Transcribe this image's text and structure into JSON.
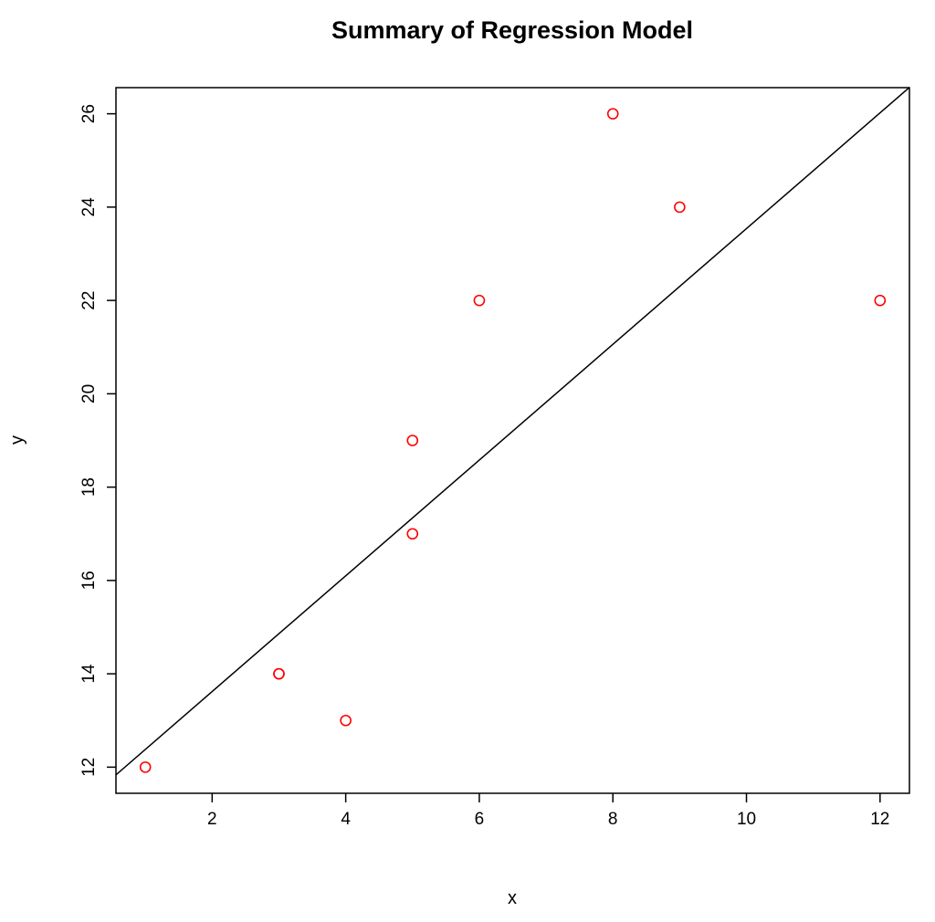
{
  "chart_data": {
    "type": "scatter",
    "title": "Summary of Regression Model",
    "xlabel": "x",
    "ylabel": "y",
    "xlim": [
      0.56,
      12.44
    ],
    "ylim": [
      11.44,
      26.56
    ],
    "x_ticks": [
      2,
      4,
      6,
      8,
      10,
      12
    ],
    "y_ticks": [
      12,
      14,
      16,
      18,
      20,
      22,
      24,
      26
    ],
    "grid": false,
    "legend": "none",
    "series": [
      {
        "points": [
          {
            "x": 1,
            "y": 12
          },
          {
            "x": 3,
            "y": 14
          },
          {
            "x": 3,
            "y": 14
          },
          {
            "x": 4,
            "y": 13
          },
          {
            "x": 5,
            "y": 17
          },
          {
            "x": 5,
            "y": 19
          },
          {
            "x": 6,
            "y": 22
          },
          {
            "x": 8,
            "y": 26
          },
          {
            "x": 9,
            "y": 24
          },
          {
            "x": 12,
            "y": 22
          }
        ],
        "marker": "open-circle",
        "color": "#ff0000"
      }
    ],
    "regression_line": {
      "intercept": 11.14,
      "slope": 1.24,
      "color": "#000000"
    }
  }
}
